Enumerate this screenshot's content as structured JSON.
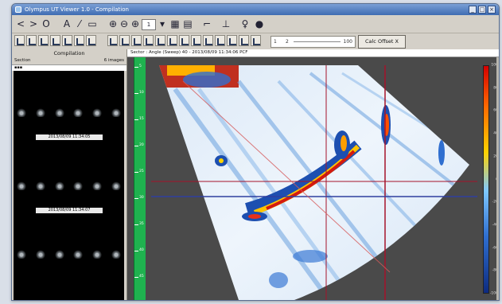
{
  "window": {
    "title": "Olympus UT Viewer 1.0 - Compilation"
  },
  "window_buttons": [
    "_",
    "□",
    "×"
  ],
  "toolbar1": {
    "items": [
      {
        "name": "back-icon",
        "glyph": "<"
      },
      {
        "name": "forward-icon",
        "glyph": ">"
      },
      {
        "name": "refresh-icon",
        "glyph": "O"
      },
      {
        "name": "text-tool-icon",
        "glyph": "A"
      },
      {
        "name": "pen-tool-icon",
        "glyph": "⁄"
      },
      {
        "name": "screen-icon",
        "glyph": "▭"
      },
      {
        "name": "zoom-in-icon",
        "glyph": "⊕"
      },
      {
        "name": "zoom-out-icon",
        "glyph": "⊖"
      },
      {
        "name": "zoom-fit-icon",
        "glyph": "⊕"
      },
      {
        "name": "spin-down-icon",
        "glyph": "▾"
      },
      {
        "name": "grid-view-icon",
        "glyph": "▦"
      },
      {
        "name": "layout-icon",
        "glyph": "▤"
      },
      {
        "name": "cursor-icon",
        "glyph": "⌐"
      },
      {
        "name": "perpendicular-icon",
        "glyph": "⊥"
      },
      {
        "name": "probe-icon",
        "glyph": "♀"
      },
      {
        "name": "record-icon",
        "glyph": "●"
      }
    ],
    "zoom_value": "1"
  },
  "toolbar2": {
    "slider_left": "1",
    "slider_mid": "2",
    "slider_right": "100",
    "calc_button": "Calc Offset X"
  },
  "left_panel": {
    "title": "Compilation",
    "header_left": "Section",
    "header_right": "6 images",
    "sub_row": "▪▪▪",
    "thumb_labels": [
      "2013/08/09 11:34:05",
      "2013/08/09 11:34:07"
    ]
  },
  "viewer": {
    "header": "Sector : Angle (Sweep) 40 - 2013/08/09 11:34:06 PCF"
  },
  "scale": {
    "labels": [
      "5",
      "10",
      "15",
      "20",
      "25",
      "30",
      "35",
      "40",
      "45"
    ]
  },
  "colorbar_labels": [
    "100",
    "80",
    "60",
    "40",
    "20",
    "0",
    "-20",
    "-40",
    "-60",
    "-80",
    "-100"
  ],
  "colors": {
    "title_bar": "#3f6cb2",
    "ruler": "#1fb24f",
    "cursor_red": "#a5132a",
    "cursor_blue": "#2f3fa0"
  }
}
